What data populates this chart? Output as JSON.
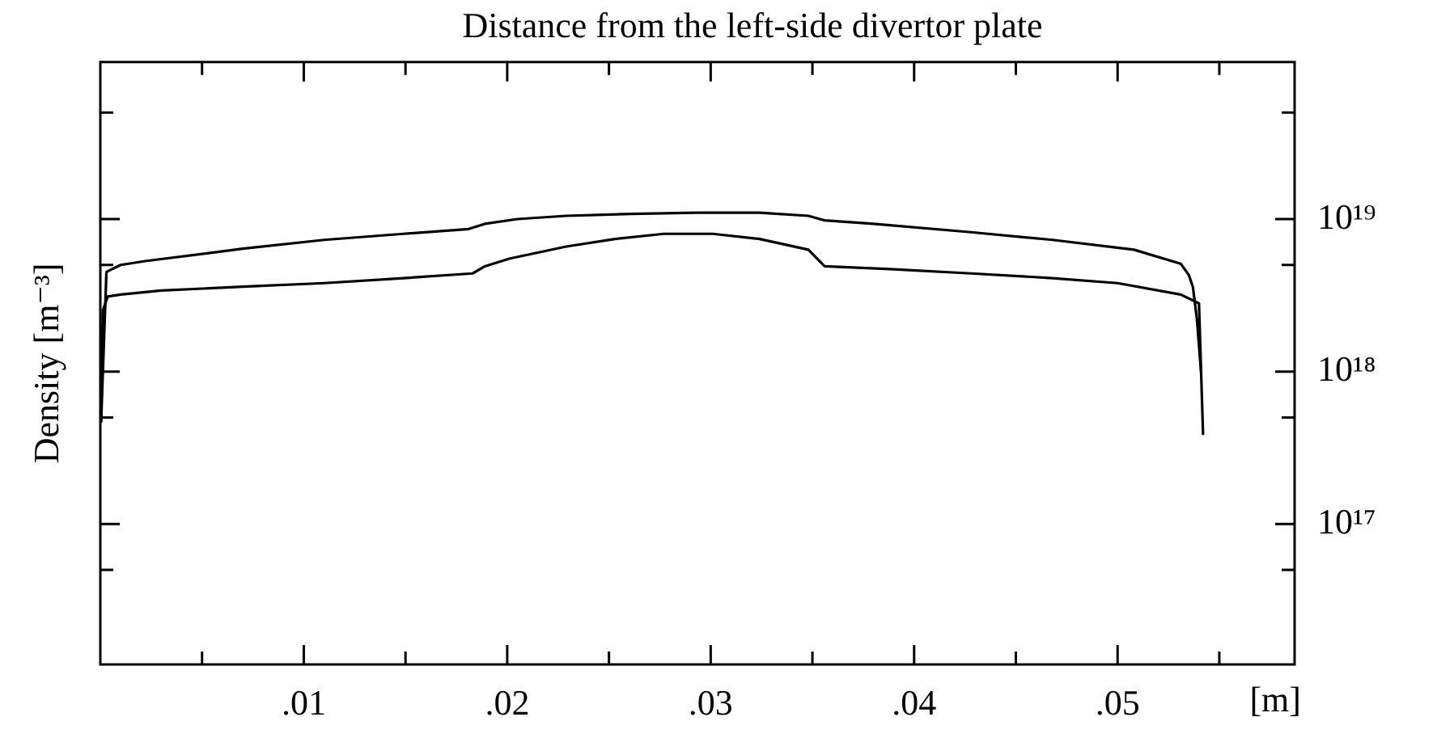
{
  "chart_data": {
    "type": "line",
    "title": "Distance from the left-side divertor plate",
    "xlabel": "[m]",
    "ylabel": "Density [m⁻³]",
    "log": "y",
    "grid": false,
    "legend": false,
    "marker": "none",
    "line_style": "solid",
    "xlim": [
      0,
      0.0587
    ],
    "xticks": [
      {
        "value": 0.005,
        "label": null
      },
      {
        "value": 0.01,
        "label": ".01"
      },
      {
        "value": 0.015,
        "label": null
      },
      {
        "value": 0.02,
        "label": ".02"
      },
      {
        "value": 0.025,
        "label": null
      },
      {
        "value": 0.03,
        "label": ".03"
      },
      {
        "value": 0.035,
        "label": null
      },
      {
        "value": 0.04,
        "label": ".04"
      },
      {
        "value": 0.045,
        "label": null
      },
      {
        "value": 0.05,
        "label": ".05"
      },
      {
        "value": 0.055,
        "label": null
      }
    ],
    "ylim": [
      1.2e+16,
      1.07e+20
    ],
    "yticks": [
      {
        "value": 5e+16,
        "label": null
      },
      {
        "value": 1e+17,
        "label": "10¹⁷"
      },
      {
        "value": 5e+17,
        "label": null
      },
      {
        "value": 1e+18,
        "label": "10¹⁸"
      },
      {
        "value": 5e+18,
        "label": null
      },
      {
        "value": 1e+19,
        "label": "10¹⁹"
      },
      {
        "value": 5e+19,
        "label": null
      }
    ],
    "series": [
      {
        "color": "#000000",
        "x": [
          4e-05,
          0.0003,
          0.001,
          0.0022,
          0.0054,
          0.007,
          0.011,
          0.0149,
          0.0181,
          0.0189,
          0.0205,
          0.0229,
          0.0261,
          0.0293,
          0.0324,
          0.0348,
          0.0356,
          0.038,
          0.0428,
          0.0468,
          0.0508,
          0.0531,
          0.0535,
          0.0537,
          0.0539,
          0.0541
        ],
        "values": [
          4.7e+17,
          4.5e+18,
          5e+18,
          5.3e+18,
          6e+18,
          6.4e+18,
          7.3e+18,
          8e+18,
          8.6e+18,
          9.3e+18,
          1e+19,
          1.05e+19,
          1.08e+19,
          1.1e+19,
          1.1e+19,
          1.05e+19,
          9.8e+18,
          9.3e+18,
          8.2e+18,
          7.3e+18,
          6.3e+18,
          5.1e+18,
          4.3e+18,
          3.6e+18,
          2.2e+18,
          1e+18
        ]
      },
      {
        "color": "#000000",
        "x": [
          4e-05,
          0.00012,
          0.00036,
          0.001,
          0.003,
          0.007,
          0.011,
          0.0149,
          0.0183,
          0.0189,
          0.0201,
          0.0229,
          0.0253,
          0.0277,
          0.0301,
          0.0324,
          0.0348,
          0.0356,
          0.0388,
          0.0428,
          0.0468,
          0.05,
          0.0531,
          0.054,
          0.0542
        ],
        "values": [
          4.7e+17,
          2.5e+18,
          3.1e+18,
          3.2e+18,
          3.4e+18,
          3.6e+18,
          3.8e+18,
          4.1e+18,
          4.4e+18,
          4.9e+18,
          5.5e+18,
          6.6e+18,
          7.4e+18,
          8e+18,
          8e+18,
          7.4e+18,
          6.3e+18,
          4.9e+18,
          4.7e+18,
          4.4e+18,
          4.1e+18,
          3.8e+18,
          3.2e+18,
          2.8e+18,
          3.9e+17
        ]
      }
    ]
  }
}
